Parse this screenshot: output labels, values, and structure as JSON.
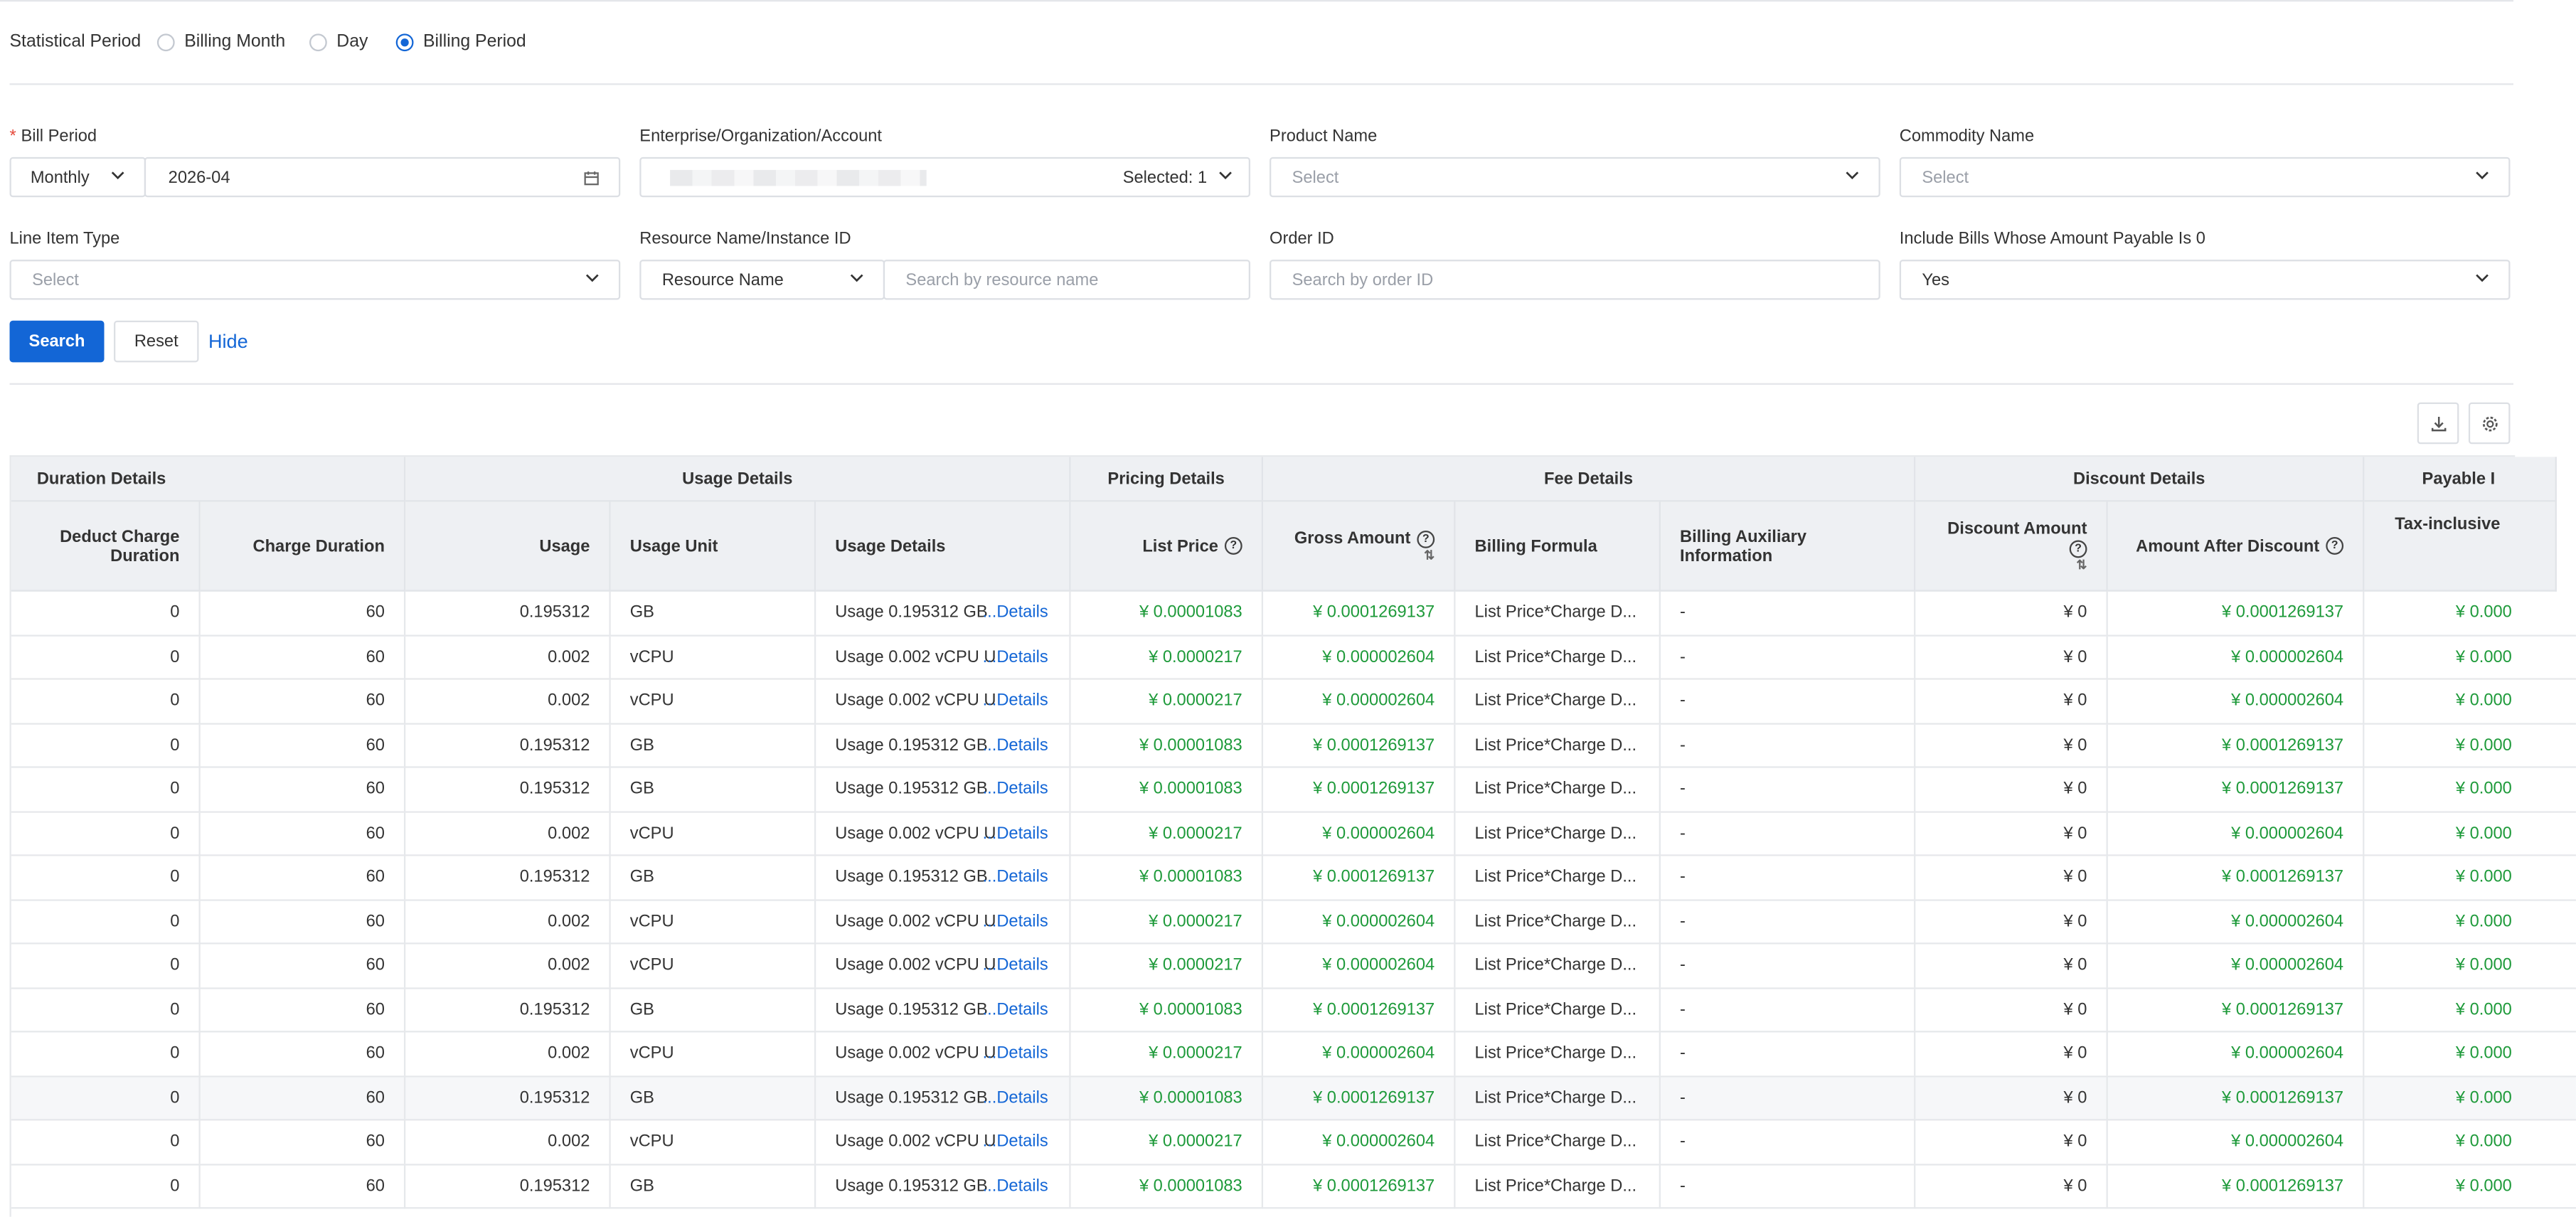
{
  "statistical_period": {
    "label": "Statistical Period",
    "options": [
      "Billing Month",
      "Day",
      "Billing Period"
    ],
    "selected": "Billing Period"
  },
  "filters": {
    "bill_period": {
      "label": "Bill Period",
      "cycle": "Monthly",
      "value": "2026-04"
    },
    "account": {
      "label": "Enterprise/Organization/Account",
      "selected_text": "Selected: 1"
    },
    "product_name": {
      "label": "Product Name",
      "placeholder": "Select"
    },
    "commodity_name": {
      "label": "Commodity Name",
      "placeholder": "Select"
    },
    "line_item_type": {
      "label": "Line Item Type",
      "placeholder": "Select"
    },
    "resource": {
      "label": "Resource Name/Instance ID",
      "type": "Resource Name",
      "placeholder": "Search by resource name"
    },
    "order_id": {
      "label": "Order ID",
      "placeholder": "Search by order ID"
    },
    "include_zero": {
      "label": "Include Bills Whose Amount Payable Is 0",
      "value": "Yes"
    }
  },
  "actions": {
    "search": "Search",
    "reset": "Reset",
    "hide": "Hide"
  },
  "table": {
    "groups": [
      "Duration Details",
      "Usage Details",
      "Pricing Details",
      "Fee Details",
      "Discount Details",
      "Payable I"
    ],
    "columns": {
      "deduct_charge_duration": "Deduct Charge Duration",
      "charge_duration": "Charge Duration",
      "usage": "Usage",
      "usage_unit": "Usage Unit",
      "usage_details": "Usage Details",
      "list_price": "List Price",
      "gross_amount": "Gross Amount",
      "billing_formula": "Billing Formula",
      "billing_auxiliary_information": "Billing Auxiliary Information",
      "discount_amount": "Discount Amount",
      "amount_after_discount": "Amount After Discount",
      "tax_inclusive": "Tax-inclusive"
    },
    "details_link": "...Details",
    "rows": [
      {
        "deduct": "0",
        "charge": "60",
        "usage": "0.195312",
        "unit": "GB",
        "usage_detail": "Usage 0.195312 GB",
        "list_price": "¥ 0.00001083",
        "gross": "¥ 0.0001269137",
        "formula": "List Price*Charge D...",
        "aux": "-",
        "discount": "¥ 0",
        "after": "¥ 0.0001269137",
        "tax": "¥ 0.000"
      },
      {
        "deduct": "0",
        "charge": "60",
        "usage": "0.002",
        "unit": "vCPU",
        "usage_detail": "Usage 0.002 vCPU U",
        "list_price": "¥ 0.0000217",
        "gross": "¥ 0.000002604",
        "formula": "List Price*Charge D...",
        "aux": "-",
        "discount": "¥ 0",
        "after": "¥ 0.000002604",
        "tax": "¥ 0.000"
      },
      {
        "deduct": "0",
        "charge": "60",
        "usage": "0.002",
        "unit": "vCPU",
        "usage_detail": "Usage 0.002 vCPU U",
        "list_price": "¥ 0.0000217",
        "gross": "¥ 0.000002604",
        "formula": "List Price*Charge D...",
        "aux": "-",
        "discount": "¥ 0",
        "after": "¥ 0.000002604",
        "tax": "¥ 0.000"
      },
      {
        "deduct": "0",
        "charge": "60",
        "usage": "0.195312",
        "unit": "GB",
        "usage_detail": "Usage 0.195312 GB",
        "list_price": "¥ 0.00001083",
        "gross": "¥ 0.0001269137",
        "formula": "List Price*Charge D...",
        "aux": "-",
        "discount": "¥ 0",
        "after": "¥ 0.0001269137",
        "tax": "¥ 0.000"
      },
      {
        "deduct": "0",
        "charge": "60",
        "usage": "0.195312",
        "unit": "GB",
        "usage_detail": "Usage 0.195312 GB",
        "list_price": "¥ 0.00001083",
        "gross": "¥ 0.0001269137",
        "formula": "List Price*Charge D...",
        "aux": "-",
        "discount": "¥ 0",
        "after": "¥ 0.0001269137",
        "tax": "¥ 0.000"
      },
      {
        "deduct": "0",
        "charge": "60",
        "usage": "0.002",
        "unit": "vCPU",
        "usage_detail": "Usage 0.002 vCPU U",
        "list_price": "¥ 0.0000217",
        "gross": "¥ 0.000002604",
        "formula": "List Price*Charge D...",
        "aux": "-",
        "discount": "¥ 0",
        "after": "¥ 0.000002604",
        "tax": "¥ 0.000"
      },
      {
        "deduct": "0",
        "charge": "60",
        "usage": "0.195312",
        "unit": "GB",
        "usage_detail": "Usage 0.195312 GB",
        "list_price": "¥ 0.00001083",
        "gross": "¥ 0.0001269137",
        "formula": "List Price*Charge D...",
        "aux": "-",
        "discount": "¥ 0",
        "after": "¥ 0.0001269137",
        "tax": "¥ 0.000"
      },
      {
        "deduct": "0",
        "charge": "60",
        "usage": "0.002",
        "unit": "vCPU",
        "usage_detail": "Usage 0.002 vCPU U",
        "list_price": "¥ 0.0000217",
        "gross": "¥ 0.000002604",
        "formula": "List Price*Charge D...",
        "aux": "-",
        "discount": "¥ 0",
        "after": "¥ 0.000002604",
        "tax": "¥ 0.000"
      },
      {
        "deduct": "0",
        "charge": "60",
        "usage": "0.002",
        "unit": "vCPU",
        "usage_detail": "Usage 0.002 vCPU U",
        "list_price": "¥ 0.0000217",
        "gross": "¥ 0.000002604",
        "formula": "List Price*Charge D...",
        "aux": "-",
        "discount": "¥ 0",
        "after": "¥ 0.000002604",
        "tax": "¥ 0.000"
      },
      {
        "deduct": "0",
        "charge": "60",
        "usage": "0.195312",
        "unit": "GB",
        "usage_detail": "Usage 0.195312 GB",
        "list_price": "¥ 0.00001083",
        "gross": "¥ 0.0001269137",
        "formula": "List Price*Charge D...",
        "aux": "-",
        "discount": "¥ 0",
        "after": "¥ 0.0001269137",
        "tax": "¥ 0.000"
      },
      {
        "deduct": "0",
        "charge": "60",
        "usage": "0.002",
        "unit": "vCPU",
        "usage_detail": "Usage 0.002 vCPU U",
        "list_price": "¥ 0.0000217",
        "gross": "¥ 0.000002604",
        "formula": "List Price*Charge D...",
        "aux": "-",
        "discount": "¥ 0",
        "after": "¥ 0.000002604",
        "tax": "¥ 0.000"
      },
      {
        "deduct": "0",
        "charge": "60",
        "usage": "0.195312",
        "unit": "GB",
        "usage_detail": "Usage 0.195312 GB",
        "list_price": "¥ 0.00001083",
        "gross": "¥ 0.0001269137",
        "formula": "List Price*Charge D...",
        "aux": "-",
        "discount": "¥ 0",
        "after": "¥ 0.0001269137",
        "tax": "¥ 0.000"
      },
      {
        "deduct": "0",
        "charge": "60",
        "usage": "0.002",
        "unit": "vCPU",
        "usage_detail": "Usage 0.002 vCPU U",
        "list_price": "¥ 0.0000217",
        "gross": "¥ 0.000002604",
        "formula": "List Price*Charge D...",
        "aux": "-",
        "discount": "¥ 0",
        "after": "¥ 0.000002604",
        "tax": "¥ 0.000"
      },
      {
        "deduct": "0",
        "charge": "60",
        "usage": "0.195312",
        "unit": "GB",
        "usage_detail": "Usage 0.195312 GB",
        "list_price": "¥ 0.00001083",
        "gross": "¥ 0.0001269137",
        "formula": "List Price*Charge D...",
        "aux": "-",
        "discount": "¥ 0",
        "after": "¥ 0.0001269137",
        "tax": "¥ 0.000"
      }
    ]
  },
  "colors": {
    "accent": "#1366d6",
    "money": "#1e9a3a",
    "header_bg": "#eef0f3",
    "required": "#e5483a"
  },
  "icons": {
    "download": "download-icon",
    "settings": "gear-icon",
    "help": "question-circle-icon",
    "sort": "sort-icon",
    "calendar": "calendar-icon",
    "chevron": "chevron-down-icon"
  }
}
